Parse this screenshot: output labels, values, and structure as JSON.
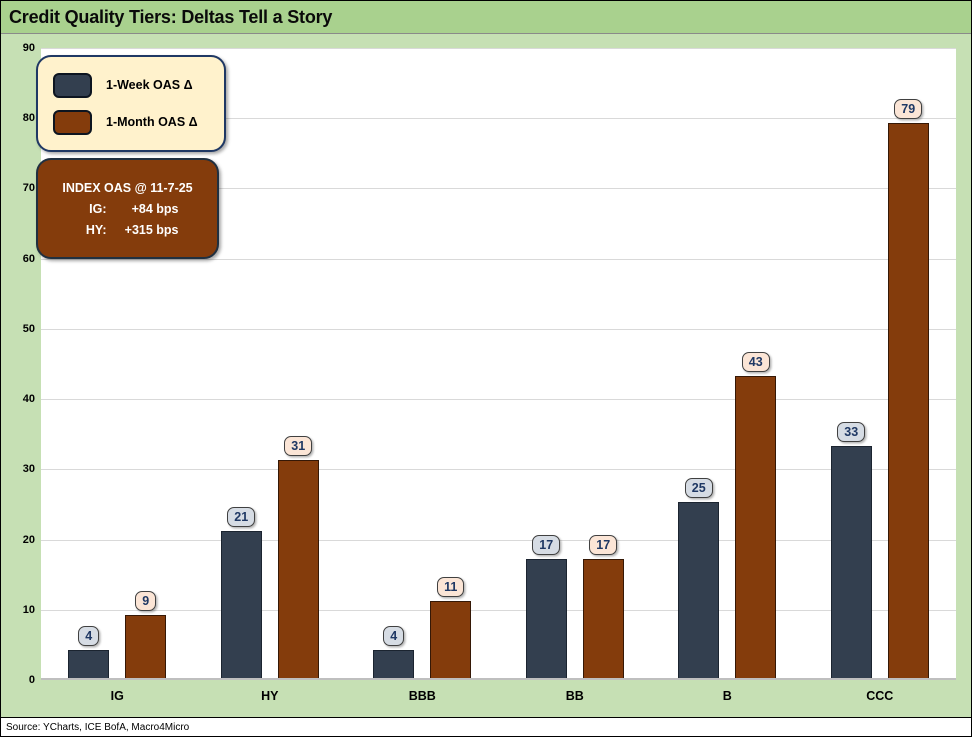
{
  "window": {
    "title": "Credit Quality Tiers: Deltas Tell a Story"
  },
  "legend": {
    "items": [
      {
        "label": "1-Week OAS Δ",
        "color": "#333F4F",
        "border": "#10161f"
      },
      {
        "label": "1-Month OAS Δ",
        "color": "#843C0C",
        "border": "#1a0d04"
      }
    ]
  },
  "info_box": {
    "title": "INDEX OAS @ 11-7-25",
    "rows": [
      {
        "label": "IG:",
        "value": "+84 bps"
      },
      {
        "label": "HY:",
        "value": "+315 bps"
      }
    ]
  },
  "source": "Source: YCharts, ICE BofA, Macro4Micro",
  "chart_data": {
    "type": "bar",
    "title": "Credit Quality Tiers: Deltas Tell a Story",
    "categories": [
      "IG",
      "HY",
      "BBB",
      "BB",
      "B",
      "CCC"
    ],
    "series": [
      {
        "name": "1-Week OAS Δ",
        "values": [
          4,
          21,
          4,
          17,
          25,
          33
        ],
        "color": "#333F4F",
        "bar_border": "#1b2430",
        "label_bg": "#D6DCE4"
      },
      {
        "name": "1-Month OAS Δ",
        "values": [
          9,
          31,
          11,
          17,
          43,
          79
        ],
        "color": "#843C0C",
        "bar_border": "#351806",
        "label_bg": "#FBE5D6"
      }
    ],
    "xlabel": "",
    "ylabel": "",
    "ylim": [
      0,
      90
    ],
    "ytick_step": 10,
    "grid": true,
    "legend_position": "top-left",
    "value_labels": true
  },
  "colors": {
    "title_bg": "#A9D18E",
    "chart_bg": "#C6E0B4",
    "plot_bg": "#FFFFFF",
    "gridline": "#D9D9D9",
    "label_text": "#1F3864"
  }
}
